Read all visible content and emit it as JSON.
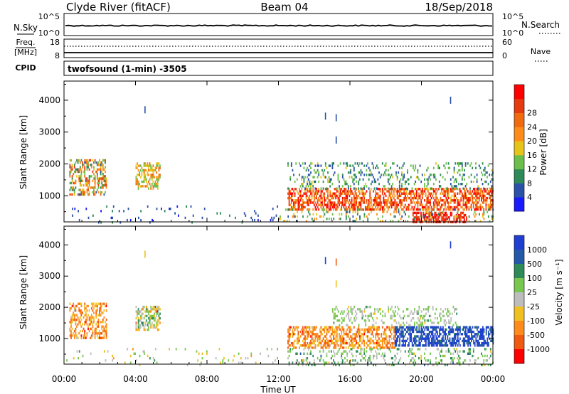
{
  "header": {
    "station": "Clyde River (fitACF)",
    "beam": "Beam 04",
    "date": "18/Sep/2018"
  },
  "top_panel": {
    "left_label": "N.Sky",
    "right_label": "N.Search",
    "left_ticks": [
      "10^5",
      "10^0"
    ],
    "right_ticks": [
      "10^5",
      "10^0"
    ]
  },
  "freq_panel": {
    "label_line1": "Freq.",
    "label_line2": "[MHz]",
    "right_label": "Nave",
    "left_ticks": [
      "18",
      "8"
    ],
    "right_ticks": [
      "60",
      "0"
    ],
    "cpid_label": "CPID",
    "program": "twofsound (1-min)  -3505"
  },
  "colors": {
    "power": [
      "#1a1aff",
      "#2a52a8",
      "#2e8b57",
      "#6cbf4a",
      "#e6c41a",
      "#ff8c1a",
      "#f06a10",
      "#e63b10",
      "#ff0000"
    ],
    "velocity": [
      "#1f3fd0",
      "#2458a8",
      "#2e8b57",
      "#78c850",
      "#bdbdbd",
      "#f0c020",
      "#ff8c1a",
      "#f05a10",
      "#ff0000"
    ],
    "ground_scatter": "#b4b4b4"
  },
  "chart_data": [
    {
      "type": "heatmap",
      "name": "power-panel",
      "xlabel": "",
      "ylabel": "Slant Range [km]",
      "x_ticks": [
        "00:00",
        "04:00",
        "08:00",
        "12:00",
        "16:00",
        "20:00",
        "00:00"
      ],
      "xlim_hours": [
        0,
        24
      ],
      "y_ticks": [
        1000,
        2000,
        3000,
        4000
      ],
      "ylim": [
        180,
        4600
      ],
      "colorbar_label": "Power [dB]",
      "colorbar_ticks": [
        "4",
        "8",
        "12",
        "16",
        "20",
        "24",
        "28"
      ],
      "clim": [
        0,
        30
      ],
      "regions": [
        {
          "t0": 0.3,
          "t1": 2.4,
          "r0": 1050,
          "r1": 2150,
          "v0": 6,
          "v1": 26,
          "d": 0.45
        },
        {
          "t0": 4.0,
          "t1": 5.4,
          "r0": 1250,
          "r1": 2050,
          "v0": 10,
          "v1": 22,
          "d": 0.5
        },
        {
          "t0": 0.0,
          "t1": 12.0,
          "r0": 180,
          "r1": 700,
          "v0": 2,
          "v1": 8,
          "d": 0.04
        },
        {
          "t0": 12.5,
          "t1": 24.0,
          "r0": 600,
          "r1": 1250,
          "v0": 16,
          "v1": 30,
          "d": 0.55
        },
        {
          "t0": 12.5,
          "t1": 24.0,
          "r0": 1250,
          "r1": 2050,
          "v0": 4,
          "v1": 14,
          "d": 0.2
        },
        {
          "t0": 19.5,
          "t1": 22.5,
          "r0": 180,
          "r1": 500,
          "v0": 24,
          "v1": 30,
          "d": 0.55
        },
        {
          "t0": 12.0,
          "t1": 24.0,
          "r0": 180,
          "r1": 600,
          "v0": 4,
          "v1": 20,
          "d": 0.15
        }
      ],
      "spots": [
        {
          "t": 4.5,
          "r": 3700,
          "v": 6
        },
        {
          "t": 14.6,
          "r": 3500,
          "v": 6
        },
        {
          "t": 15.2,
          "r": 3450,
          "v": 6
        },
        {
          "t": 15.2,
          "r": 2750,
          "v": 6
        },
        {
          "t": 21.6,
          "r": 4000,
          "v": 6
        }
      ]
    },
    {
      "type": "heatmap",
      "name": "velocity-panel",
      "xlabel": "Time UT",
      "ylabel": "Slant Range [km]",
      "x_ticks": [
        "00:00",
        "04:00",
        "08:00",
        "12:00",
        "16:00",
        "20:00",
        "00:00"
      ],
      "xlim_hours": [
        0,
        24
      ],
      "y_ticks": [
        1000,
        2000,
        3000,
        4000
      ],
      "ylim": [
        180,
        4600
      ],
      "colorbar_label": "Velocity [m s⁻¹]",
      "colorbar_ticks": [
        "1000",
        "500",
        "100",
        "25",
        "-25",
        "-100",
        "-500",
        "-1000"
      ],
      "regions": [
        {
          "t0": 0.3,
          "t1": 2.4,
          "r0": 1050,
          "r1": 2150,
          "v0": 5,
          "v1": 7,
          "d": 0.45
        },
        {
          "t0": 4.0,
          "t1": 5.4,
          "r0": 1250,
          "r1": 2050,
          "v0": 2,
          "v1": 6,
          "d": 0.5
        },
        {
          "t0": 0.0,
          "t1": 12.0,
          "r0": 180,
          "r1": 700,
          "v0": 3,
          "v1": 5,
          "d": 0.04
        },
        {
          "t0": 12.5,
          "t1": 18.5,
          "r0": 700,
          "r1": 1400,
          "v0": 5,
          "v1": 7,
          "d": 0.5
        },
        {
          "t0": 18.5,
          "t1": 24.0,
          "r0": 800,
          "r1": 1400,
          "v0": 0,
          "v1": 1,
          "d": 0.6
        },
        {
          "t0": 15.0,
          "t1": 22.0,
          "r0": 1400,
          "r1": 2050,
          "v0": 3,
          "v1": 4,
          "d": 0.25
        },
        {
          "t0": 12.5,
          "t1": 24.0,
          "r0": 180,
          "r1": 700,
          "v0": 2,
          "v1": 4,
          "d": 0.2
        }
      ],
      "spots": [
        {
          "t": 4.5,
          "r": 3700,
          "v": 5
        },
        {
          "t": 14.6,
          "r": 3500,
          "v": 0
        },
        {
          "t": 15.2,
          "r": 3450,
          "v": 7
        },
        {
          "t": 15.2,
          "r": 2750,
          "v": 5
        },
        {
          "t": 21.6,
          "r": 4000,
          "v": 0
        }
      ]
    }
  ]
}
